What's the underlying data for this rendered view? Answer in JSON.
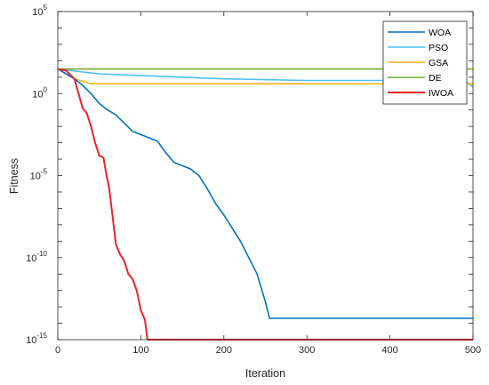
{
  "chart_data": {
    "type": "line",
    "xlabel": "Iteration",
    "ylabel": "Fitness",
    "xlim": [
      0,
      500
    ],
    "ylim_log10": [
      -15,
      5
    ],
    "yscale": "log",
    "grid": false,
    "legend_position": "top-right",
    "x_ticks": [
      "0",
      "100",
      "200",
      "300",
      "400",
      "500"
    ],
    "y_ticks": [
      {
        "base": "10",
        "exp": "5",
        "log10": 5
      },
      {
        "base": "10",
        "exp": "0",
        "log10": 0
      },
      {
        "base": "10",
        "exp": "-5",
        "log10": -5
      },
      {
        "base": "10",
        "exp": "-10",
        "log10": -10
      },
      {
        "base": "10",
        "exp": "-15",
        "log10": -15
      }
    ],
    "series": [
      {
        "name": "WOA",
        "color": "#0072BD",
        "x_log10y": [
          [
            0,
            1.5
          ],
          [
            10,
            1.2
          ],
          [
            20,
            0.9
          ],
          [
            30,
            0.5
          ],
          [
            40,
            0.0
          ],
          [
            50,
            -0.6
          ],
          [
            60,
            -1.0
          ],
          [
            70,
            -1.3
          ],
          [
            80,
            -1.8
          ],
          [
            90,
            -2.3
          ],
          [
            100,
            -2.5
          ],
          [
            110,
            -2.7
          ],
          [
            120,
            -2.9
          ],
          [
            130,
            -3.6
          ],
          [
            140,
            -4.2
          ],
          [
            150,
            -4.4
          ],
          [
            160,
            -4.6
          ],
          [
            170,
            -5.0
          ],
          [
            180,
            -5.8
          ],
          [
            190,
            -6.7
          ],
          [
            200,
            -7.4
          ],
          [
            210,
            -8.2
          ],
          [
            220,
            -9.0
          ],
          [
            230,
            -10.0
          ],
          [
            240,
            -11.0
          ],
          [
            250,
            -12.7
          ],
          [
            255,
            -13.7
          ],
          [
            260,
            -13.7
          ],
          [
            300,
            -13.7
          ],
          [
            400,
            -13.7
          ],
          [
            500,
            -13.7
          ]
        ]
      },
      {
        "name": "PSO",
        "color": "#4DBEEE",
        "x_log10y": [
          [
            0,
            1.5
          ],
          [
            50,
            1.2
          ],
          [
            100,
            1.1
          ],
          [
            150,
            1.0
          ],
          [
            200,
            0.9
          ],
          [
            300,
            0.8
          ],
          [
            400,
            0.8
          ],
          [
            490,
            0.8
          ],
          [
            500,
            0.4
          ]
        ]
      },
      {
        "name": "GSA",
        "color": "#EDB120",
        "x_log10y": [
          [
            0,
            1.5
          ],
          [
            20,
            0.9
          ],
          [
            40,
            0.6
          ],
          [
            100,
            0.6
          ],
          [
            500,
            0.6
          ]
        ]
      },
      {
        "name": "DE",
        "color": "#77AC30",
        "x_log10y": [
          [
            0,
            1.5
          ],
          [
            500,
            1.5
          ]
        ]
      },
      {
        "name": "IWOA",
        "color": "#E8252A",
        "x_log10y": [
          [
            0,
            1.5
          ],
          [
            10,
            1.4
          ],
          [
            20,
            0.9
          ],
          [
            25,
            0.0
          ],
          [
            30,
            -0.9
          ],
          [
            35,
            -1.2
          ],
          [
            40,
            -2.0
          ],
          [
            45,
            -3.0
          ],
          [
            50,
            -3.8
          ],
          [
            55,
            -3.9
          ],
          [
            58,
            -4.8
          ],
          [
            62,
            -5.8
          ],
          [
            66,
            -7.5
          ],
          [
            70,
            -9.2
          ],
          [
            75,
            -9.8
          ],
          [
            80,
            -10.2
          ],
          [
            85,
            -11.0
          ],
          [
            90,
            -11.3
          ],
          [
            95,
            -12.0
          ],
          [
            100,
            -13.2
          ],
          [
            105,
            -13.8
          ],
          [
            108,
            -15.0
          ],
          [
            500,
            -15.0
          ]
        ]
      }
    ]
  }
}
